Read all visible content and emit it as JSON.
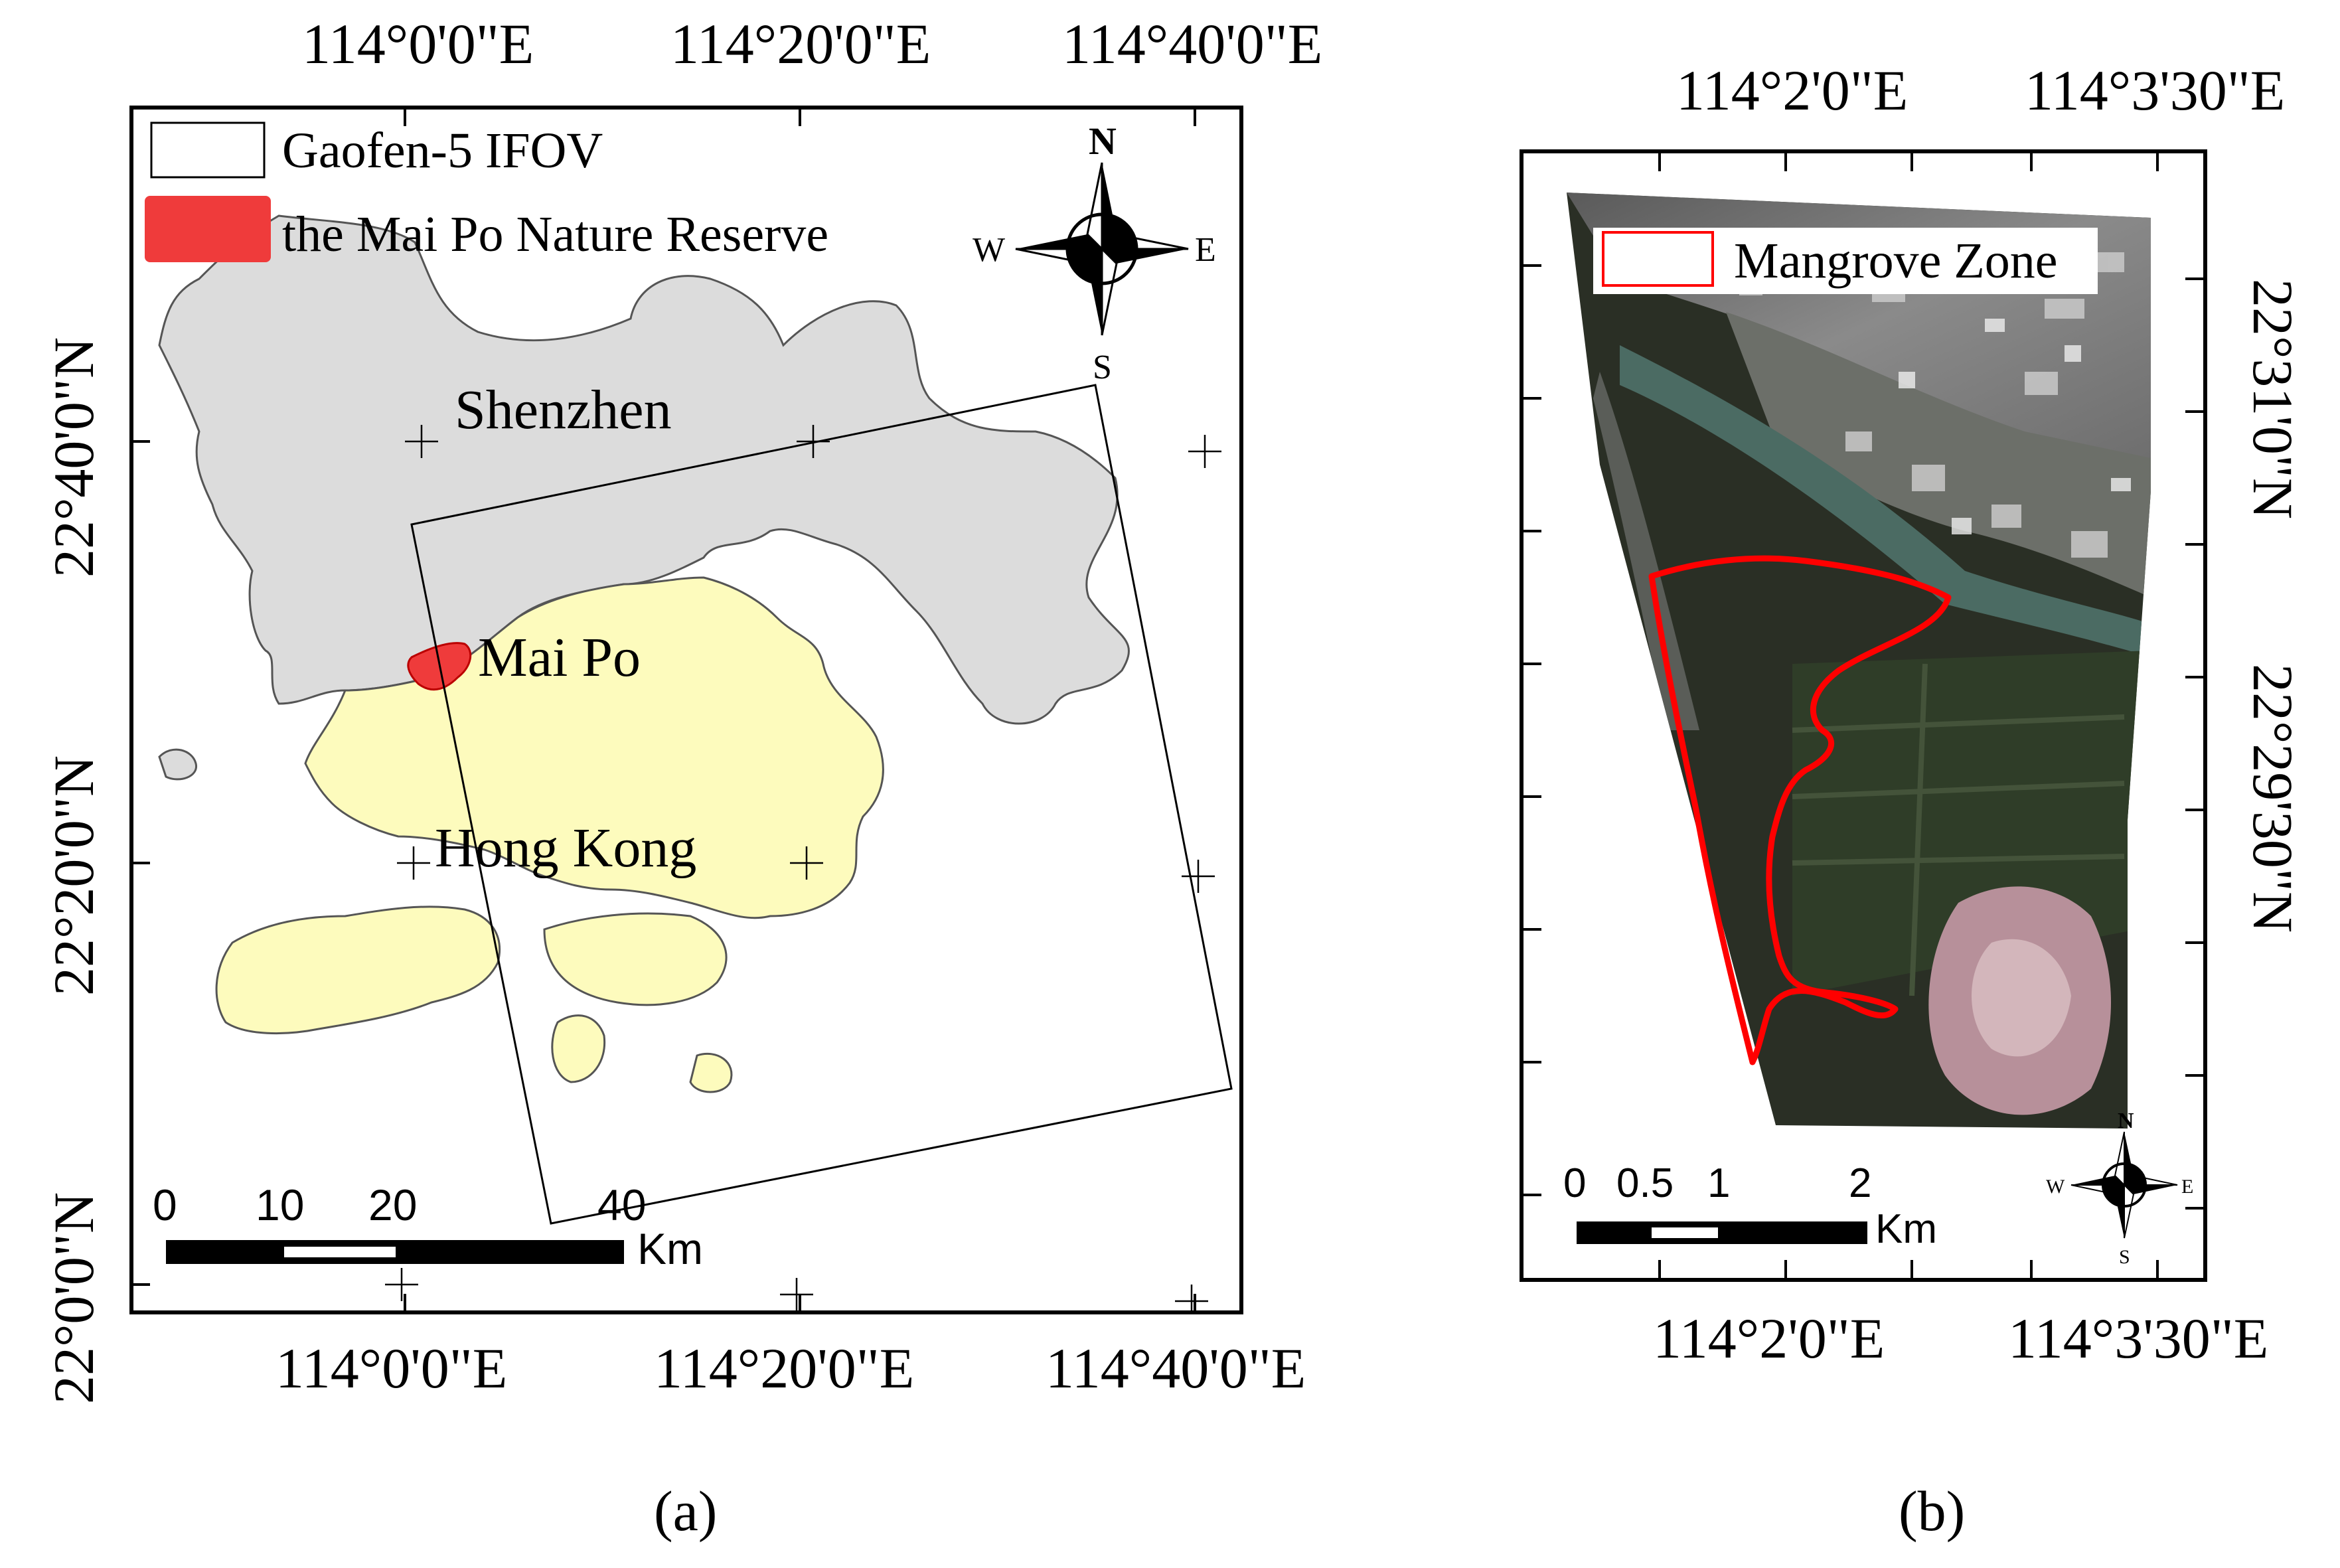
{
  "panel_a": {
    "top_lon_labels": [
      "114°0'0\"E",
      "114°20'0\"E",
      "114°40'0\"E"
    ],
    "bottom_lon_labels": [
      "114°0'0\"E",
      "114°20'0\"E",
      "114°40'0\"E"
    ],
    "left_lat_labels": [
      "22°40'0\"N",
      "22°20'0\"N",
      "22°0'0\"N"
    ],
    "legend": {
      "ifov_label": "Gaofen-5 IFOV",
      "reserve_label": "the Mai Po Nature Reserve"
    },
    "places": {
      "shenzhen": "Shenzhen",
      "mai_po": "Mai Po",
      "hong_kong": "Hong Kong"
    },
    "compass": {
      "n": "N",
      "s": "S",
      "w": "W",
      "e": "E"
    },
    "scalebar": {
      "ticks": [
        "0",
        "10",
        "20",
        "40"
      ],
      "unit": "Km"
    },
    "caption": "(a)"
  },
  "panel_b": {
    "top_lon_labels": [
      "114°2'0\"E",
      "114°3'30\"E"
    ],
    "bottom_lon_labels": [
      "114°2'0\"E",
      "114°3'30\"E"
    ],
    "right_lat_labels": [
      "22°31'0\"N",
      "22°29'30\"N"
    ],
    "legend": {
      "mangrove_label": "Mangrove Zone"
    },
    "compass": {
      "n": "N",
      "s": "S",
      "w": "W",
      "e": "E"
    },
    "scalebar": {
      "ticks": [
        "0",
        "0.5",
        "1",
        "2"
      ],
      "unit": "Km"
    },
    "caption": "(b)"
  },
  "colors": {
    "shenzhen_land": "#dcdcdc",
    "hong_kong_land": "#fdfbbd",
    "reserve": "#ef3b3b",
    "mangrove_outline": "#ff0000"
  }
}
